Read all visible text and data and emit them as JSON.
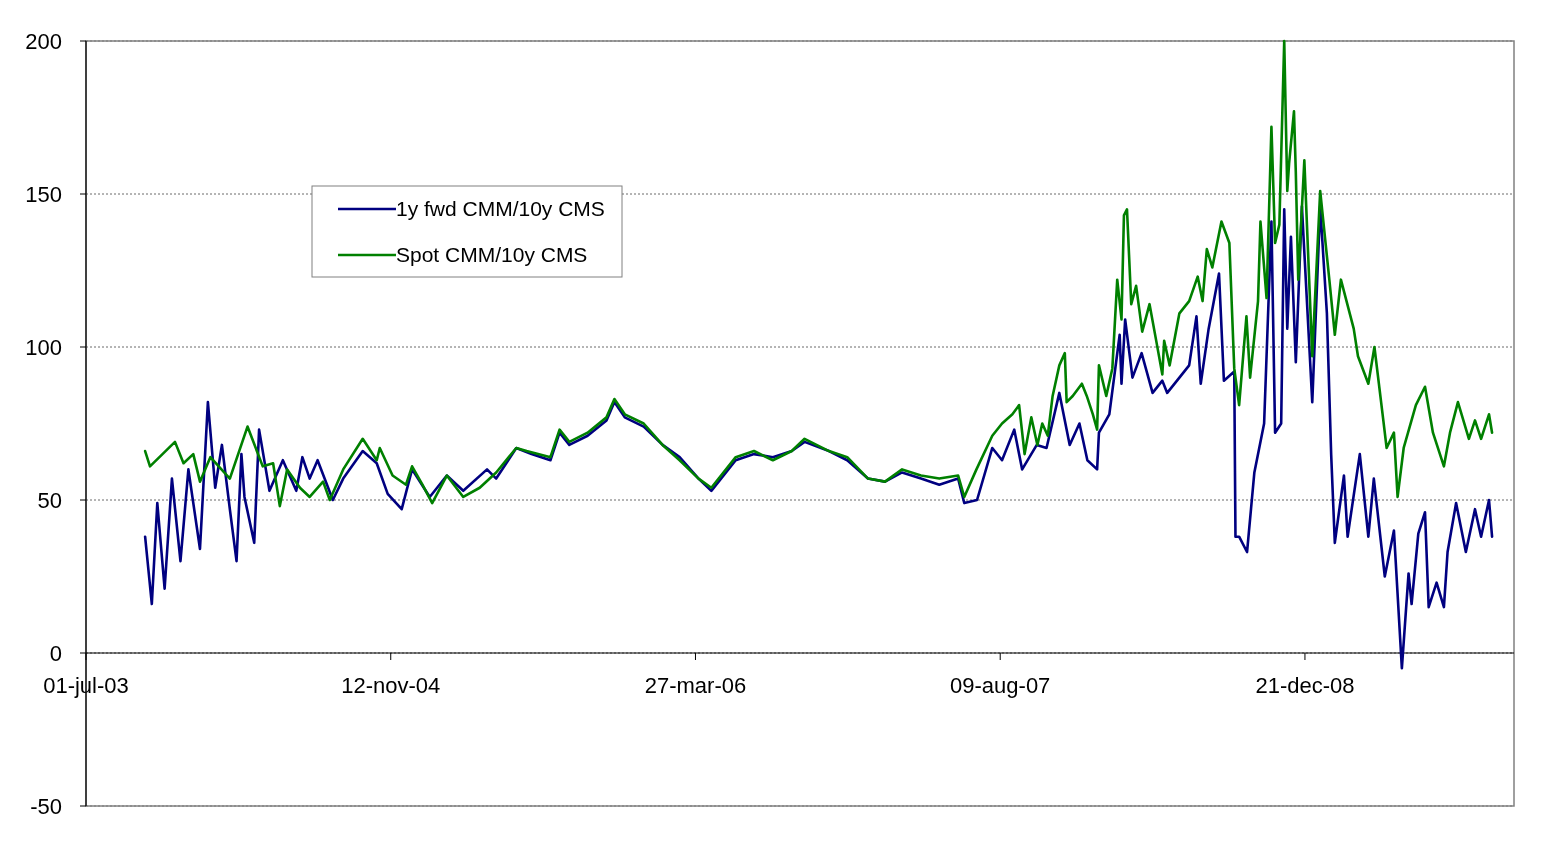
{
  "chart_data": {
    "type": "line",
    "xlim": [
      "2003-07-01",
      "2009-11-29"
    ],
    "xticks": [
      {
        "value": "2003-07-01",
        "label": "01-jul-03"
      },
      {
        "value": "2004-11-12",
        "label": "12-nov-04"
      },
      {
        "value": "2006-03-27",
        "label": "27-mar-06"
      },
      {
        "value": "2007-08-09",
        "label": "09-aug-07"
      },
      {
        "value": "2008-12-21",
        "label": "21-dec-08"
      }
    ],
    "ylim": [
      -50,
      200
    ],
    "yticks": [
      -50,
      0,
      50,
      100,
      150,
      200
    ],
    "grid": "y",
    "legend": "top left",
    "line_style": "solid",
    "marker": "none",
    "series": [
      {
        "name": "1y fwd CMM/10y CMS",
        "color": "#000080",
        "x": [
          "2003-10-06",
          "2003-10-17",
          "2003-10-26",
          "2003-11-07",
          "2003-11-19",
          "2003-12-03",
          "2003-12-16",
          "2004-01-04",
          "2004-01-17",
          "2004-01-29",
          "2004-02-09",
          "2004-02-22",
          "2004-03-04",
          "2004-03-12",
          "2004-03-17",
          "2004-04-02",
          "2004-04-10",
          "2004-04-27",
          "2004-05-19",
          "2004-06-10",
          "2004-06-20",
          "2004-07-02",
          "2004-07-15",
          "2004-08-09",
          "2004-08-26",
          "2004-09-27",
          "2004-10-20",
          "2004-11-07",
          "2004-11-30",
          "2004-12-17",
          "2005-01-15",
          "2005-02-12",
          "2005-03-11",
          "2005-04-19",
          "2005-05-04",
          "2005-06-06",
          "2005-07-01",
          "2005-08-01",
          "2005-08-16",
          "2005-09-01",
          "2005-10-01",
          "2005-11-01",
          "2005-11-14",
          "2005-12-01",
          "2006-01-01",
          "2006-02-01",
          "2006-03-01",
          "2006-04-01",
          "2006-04-22",
          "2006-06-01",
          "2006-07-01",
          "2006-08-01",
          "2006-09-01",
          "2006-09-22",
          "2006-11-01",
          "2006-12-01",
          "2007-01-04",
          "2007-02-01",
          "2007-03-01",
          "2007-04-01",
          "2007-05-01",
          "2007-06-01",
          "2007-06-11",
          "2007-07-02",
          "2007-07-27",
          "2007-08-12",
          "2007-09-01",
          "2007-09-14",
          "2007-10-08",
          "2007-10-24",
          "2007-11-14",
          "2007-12-01",
          "2007-12-17",
          "2007-12-30",
          "2008-01-15",
          "2008-01-18",
          "2008-02-04",
          "2008-02-21",
          "2008-02-24",
          "2008-03-01",
          "2008-03-13",
          "2008-03-28",
          "2008-04-15",
          "2008-05-01",
          "2008-05-09",
          "2008-05-29",
          "2008-06-14",
          "2008-06-26",
          "2008-07-03",
          "2008-07-16",
          "2008-08-02",
          "2008-08-10",
          "2008-08-27",
          "2008-08-29",
          "2008-09-04",
          "2008-09-17",
          "2008-09-29",
          "2008-10-15",
          "2008-10-27",
          "2008-11-02",
          "2008-11-12",
          "2008-11-17",
          "2008-11-22",
          "2008-11-28",
          "2008-12-06",
          "2008-12-16",
          "2009-01-02",
          "2009-01-15",
          "2009-01-26",
          "2009-02-02",
          "2009-02-08",
          "2009-02-23",
          "2009-03-01",
          "2009-03-21",
          "2009-04-04",
          "2009-04-13",
          "2009-05-01",
          "2009-05-16",
          "2009-05-29",
          "2009-06-09",
          "2009-06-14",
          "2009-06-25",
          "2009-07-06",
          "2009-07-12",
          "2009-07-25",
          "2009-08-06",
          "2009-08-12",
          "2009-08-26",
          "2009-09-11",
          "2009-09-26",
          "2009-10-06",
          "2009-10-19",
          "2009-10-24"
        ],
        "values": [
          38,
          16,
          49,
          21,
          57,
          30,
          60,
          34,
          82,
          54,
          68,
          47,
          30,
          65,
          51,
          36,
          73,
          53,
          63,
          53,
          64,
          57,
          63,
          50,
          57,
          66,
          62,
          52,
          47,
          60,
          51,
          58,
          53,
          60,
          57,
          67,
          65,
          63,
          72,
          68,
          71,
          76,
          82,
          77,
          74,
          68,
          64,
          57,
          53,
          63,
          65,
          64,
          66,
          69,
          66,
          63,
          57,
          56,
          59,
          57,
          55,
          57,
          49,
          50,
          67,
          63,
          73,
          60,
          68,
          67,
          85,
          68,
          75,
          63,
          60,
          72,
          78,
          104,
          88,
          109,
          90,
          98,
          85,
          89,
          85,
          90,
          94,
          110,
          88,
          106,
          124,
          89,
          92,
          38,
          38,
          33,
          59,
          75,
          141,
          72,
          75,
          145,
          106,
          136,
          95,
          146,
          82,
          146,
          111,
          65,
          36,
          58,
          38,
          65,
          38,
          57,
          25,
          40,
          -5,
          26,
          16,
          39,
          46,
          15,
          23,
          15,
          33,
          49,
          33,
          47,
          38,
          50,
          38
        ]
      },
      {
        "name": "Spot CMM/10y CMS",
        "color": "#008000",
        "x": [
          "2003-10-06",
          "2003-10-14",
          "2003-11-24",
          "2003-12-08",
          "2003-12-24",
          "2004-01-04",
          "2004-01-21",
          "2004-02-22",
          "2004-03-22",
          "2004-04-16",
          "2004-05-03",
          "2004-05-14",
          "2004-05-26",
          "2004-06-16",
          "2004-07-02",
          "2004-07-24",
          "2004-08-04",
          "2004-08-26",
          "2004-09-27",
          "2004-10-20",
          "2004-10-25",
          "2004-11-15",
          "2004-12-07",
          "2004-12-17",
          "2005-01-03",
          "2005-01-19",
          "2005-02-12",
          "2005-03-11",
          "2005-04-07",
          "2005-05-04",
          "2005-06-06",
          "2005-06-23",
          "2005-08-01",
          "2005-08-16",
          "2005-09-01",
          "2005-10-01",
          "2005-11-01",
          "2005-11-14",
          "2005-12-01",
          "2006-01-01",
          "2006-02-01",
          "2006-03-01",
          "2006-04-01",
          "2006-04-22",
          "2006-06-01",
          "2006-07-01",
          "2006-08-01",
          "2006-09-01",
          "2006-09-22",
          "2006-11-01",
          "2006-12-01",
          "2007-01-04",
          "2007-02-01",
          "2007-03-01",
          "2007-04-01",
          "2007-05-01",
          "2007-06-01",
          "2007-06-11",
          "2007-07-01",
          "2007-07-27",
          "2007-08-12",
          "2007-08-29",
          "2007-09-09",
          "2007-09-18",
          "2007-09-29",
          "2007-10-09",
          "2007-10-17",
          "2007-10-26",
          "2007-11-03",
          "2007-11-14",
          "2007-11-23",
          "2007-11-26",
          "2007-12-06",
          "2007-12-21",
          "2007-12-29",
          "2008-01-08",
          "2008-01-15",
          "2008-01-18",
          "2008-01-30",
          "2008-02-09",
          "2008-02-17",
          "2008-02-24",
          "2008-02-28",
          "2008-03-04",
          "2008-03-11",
          "2008-03-19",
          "2008-03-29",
          "2008-04-10",
          "2008-04-21",
          "2008-05-01",
          "2008-05-04",
          "2008-05-13",
          "2008-05-29",
          "2008-06-14",
          "2008-06-28",
          "2008-07-06",
          "2008-07-13",
          "2008-07-22",
          "2008-08-06",
          "2008-08-19",
          "2008-08-27",
          "2008-09-04",
          "2008-09-16",
          "2008-09-22",
          "2008-10-05",
          "2008-10-09",
          "2008-10-19",
          "2008-10-27",
          "2008-11-02",
          "2008-11-09",
          "2008-11-17",
          "2008-11-22",
          "2008-11-25",
          "2008-12-03",
          "2008-12-06",
          "2008-12-10",
          "2008-12-20",
          "2009-01-02",
          "2009-01-15",
          "2009-01-30",
          "2009-02-08",
          "2009-02-18",
          "2009-03-11",
          "2009-03-18",
          "2009-04-04",
          "2009-04-14",
          "2009-04-28",
          "2009-05-04",
          "2009-05-16",
          "2009-05-22",
          "2009-06-01",
          "2009-06-21",
          "2009-07-06",
          "2009-07-19",
          "2009-08-06",
          "2009-08-16",
          "2009-08-29",
          "2009-09-16",
          "2009-09-26",
          "2009-10-06",
          "2009-10-19",
          "2009-10-24"
        ],
        "values": [
          66,
          61,
          69,
          62,
          65,
          56,
          64,
          57,
          74,
          61,
          62,
          48,
          60,
          54,
          51,
          56,
          50,
          60,
          70,
          63,
          67,
          58,
          55,
          61,
          55,
          49,
          58,
          51,
          54,
          59,
          67,
          66,
          64,
          73,
          69,
          72,
          77,
          83,
          78,
          75,
          68,
          63,
          57,
          54,
          64,
          66,
          63,
          66,
          70,
          66,
          64,
          57,
          56,
          60,
          58,
          57,
          58,
          51,
          60,
          71,
          75,
          78,
          81,
          65,
          77,
          68,
          75,
          71,
          84,
          94,
          98,
          82,
          84,
          88,
          84,
          78,
          73,
          94,
          84,
          93,
          122,
          109,
          143,
          145,
          114,
          120,
          105,
          114,
          102,
          91,
          102,
          94,
          111,
          115,
          123,
          115,
          132,
          126,
          141,
          134,
          93,
          81,
          110,
          90,
          115,
          141,
          116,
          172,
          134,
          140,
          200,
          151,
          160,
          177,
          157,
          122,
          161,
          97,
          151,
          122,
          104,
          122,
          106,
          97,
          88,
          100,
          77,
          67,
          72,
          51,
          67,
          81,
          87,
          72,
          61,
          72,
          82,
          70,
          76,
          70,
          78,
          72
        ]
      }
    ]
  }
}
